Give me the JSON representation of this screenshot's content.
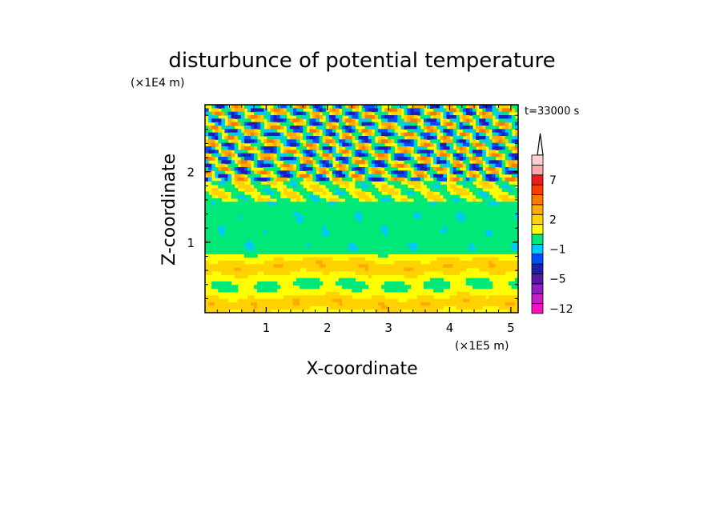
{
  "chart_data": {
    "type": "heatmap",
    "title": "disturbunce of potential temperature",
    "xlabel": "X-coordinate",
    "ylabel": "Z-coordinate",
    "x_scale_label": "(×1E5 m)",
    "y_scale_label": "(×1E4 m)",
    "time_label": "t=33000 s",
    "xlim": [
      0,
      5.12
    ],
    "ylim": [
      0,
      2.95
    ],
    "x_ticks": [
      {
        "value": 1,
        "label": "1"
      },
      {
        "value": 2,
        "label": "2"
      },
      {
        "value": 3,
        "label": "3"
      },
      {
        "value": 4,
        "label": "4"
      },
      {
        "value": 5,
        "label": "5"
      }
    ],
    "y_ticks": [
      {
        "value": 1,
        "label": "1"
      },
      {
        "value": 2,
        "label": "2"
      }
    ],
    "colorbar": {
      "levels": [
        {
          "color": "#ff10c0"
        },
        {
          "color": "#c81ec8"
        },
        {
          "color": "#8c1ec8"
        },
        {
          "color": "#5a14aa"
        },
        {
          "color": "#1e1eb4"
        },
        {
          "color": "#0050ff"
        },
        {
          "color": "#00c8ff"
        },
        {
          "color": "#00e878"
        },
        {
          "color": "#ffff00"
        },
        {
          "color": "#ffd200"
        },
        {
          "color": "#ffaa00"
        },
        {
          "color": "#ff7800"
        },
        {
          "color": "#ff3c00"
        },
        {
          "color": "#e61e1e"
        },
        {
          "color": "#ffaaaa"
        },
        {
          "color": "#ffd2d2"
        }
      ],
      "labels": [
        {
          "level_index": 0,
          "label": "−12"
        },
        {
          "level_index": 3,
          "label": "−5"
        },
        {
          "level_index": 6,
          "label": "−1"
        },
        {
          "level_index": 9,
          "label": "2"
        },
        {
          "level_index": 13,
          "label": "7"
        }
      ]
    }
  }
}
